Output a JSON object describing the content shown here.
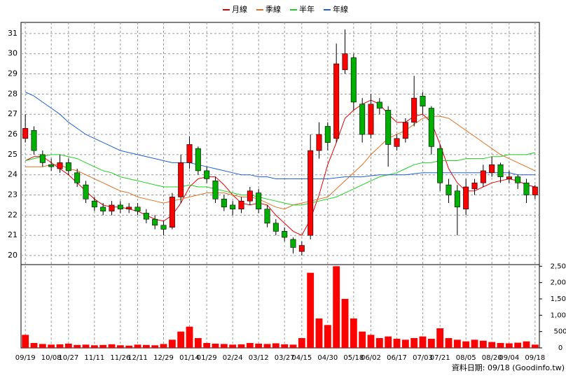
{
  "chart_data": {
    "type": "candlestick",
    "categories": [
      "09/19",
      null,
      null,
      "10/08",
      null,
      "10/27",
      null,
      null,
      "11/11",
      null,
      null,
      "11/26",
      null,
      "12/11",
      null,
      null,
      "12/29",
      null,
      null,
      "01/14",
      null,
      "01/29",
      null,
      null,
      "02/24",
      null,
      null,
      "03/12",
      null,
      null,
      "03/27",
      null,
      "04/15",
      null,
      null,
      "04/30",
      null,
      null,
      "05/18",
      null,
      "06/02",
      null,
      null,
      "06/17",
      null,
      null,
      "07/03",
      null,
      "07/21",
      null,
      null,
      "08/05",
      null,
      null,
      "08/20",
      null,
      "09/04",
      null,
      null,
      "09/18"
    ],
    "open": [
      25.8,
      26.2,
      25.0,
      24.5,
      24.3,
      24.6,
      24.1,
      23.5,
      22.7,
      22.4,
      22.2,
      22.5,
      22.3,
      22.4,
      22.1,
      21.8,
      21.5,
      21.4,
      22.9,
      24.6,
      25.3,
      24.2,
      23.7,
      22.8,
      22.5,
      22.3,
      22.7,
      23.1,
      22.3,
      21.6,
      21.2,
      20.8,
      20.2,
      21.0,
      25.2,
      26.4,
      25.8,
      29.2,
      29.8,
      27.5,
      26.0,
      27.6,
      27.2,
      25.4,
      25.8,
      26.6,
      27.9,
      27.3,
      25.3,
      23.5,
      23.2,
      22.3,
      23.3,
      23.6,
      24.1,
      24.5,
      23.8,
      23.9,
      23.6,
      23.0
    ],
    "high": [
      27.0,
      26.4,
      25.2,
      24.8,
      25.0,
      24.8,
      24.3,
      23.7,
      22.9,
      22.6,
      22.7,
      22.7,
      22.6,
      22.6,
      22.3,
      22.0,
      21.7,
      23.1,
      25.0,
      25.9,
      25.4,
      24.4,
      23.9,
      23.0,
      22.7,
      22.9,
      23.4,
      23.3,
      22.5,
      21.8,
      21.4,
      20.9,
      20.7,
      26.0,
      26.6,
      26.6,
      30.5,
      31.2,
      30.0,
      27.8,
      28.0,
      27.8,
      27.4,
      26.0,
      26.8,
      28.9,
      28.1,
      27.4,
      25.5,
      23.8,
      23.5,
      23.8,
      23.8,
      24.5,
      24.9,
      24.6,
      24.2,
      24.0,
      23.8,
      23.5
    ],
    "low": [
      25.6,
      25.0,
      24.4,
      24.2,
      24.1,
      24.0,
      23.4,
      22.6,
      22.2,
      22.0,
      22.0,
      22.1,
      22.1,
      22.0,
      21.6,
      21.3,
      21.0,
      21.3,
      22.6,
      24.3,
      24.0,
      23.6,
      22.6,
      22.2,
      22.0,
      22.1,
      22.5,
      22.1,
      21.4,
      21.0,
      20.7,
      20.1,
      20.0,
      20.8,
      24.8,
      25.2,
      25.6,
      29.0,
      27.2,
      25.6,
      25.8,
      27.0,
      24.4,
      25.2,
      25.6,
      26.4,
      27.0,
      25.0,
      23.2,
      22.6,
      21.0,
      22.0,
      23.0,
      23.4,
      23.9,
      23.6,
      23.6,
      23.3,
      22.6,
      22.8
    ],
    "close": [
      26.3,
      25.2,
      24.6,
      24.4,
      24.6,
      24.2,
      23.6,
      22.8,
      22.4,
      22.2,
      22.5,
      22.3,
      22.4,
      22.2,
      21.8,
      21.5,
      21.3,
      22.9,
      24.6,
      25.5,
      24.2,
      23.8,
      22.8,
      22.4,
      22.3,
      22.7,
      23.2,
      22.3,
      21.6,
      21.2,
      20.9,
      20.4,
      20.5,
      25.2,
      26.0,
      25.6,
      29.5,
      30.0,
      27.6,
      26.0,
      27.5,
      27.3,
      25.5,
      25.8,
      26.6,
      27.8,
      27.4,
      25.4,
      23.6,
      23.0,
      22.4,
      23.4,
      23.6,
      24.2,
      24.5,
      23.9,
      23.9,
      23.6,
      23.0,
      23.4
    ],
    "up_color": "#ff0000",
    "down_color": "#00b000",
    "series": [
      {
        "name": "月線",
        "color": "#e00000",
        "values": [
          24.7,
          24.9,
          24.9,
          24.6,
          24.3,
          24.0,
          23.6,
          23.2,
          22.8,
          22.5,
          22.4,
          22.4,
          22.3,
          22.2,
          22.0,
          21.8,
          21.7,
          22.0,
          22.6,
          23.4,
          23.8,
          23.9,
          23.9,
          23.5,
          23.0,
          22.6,
          22.5,
          22.6,
          22.5,
          22.0,
          21.6,
          21.2,
          21.0,
          21.8,
          23.0,
          24.5,
          25.6,
          26.8,
          27.2,
          27.5,
          27.7,
          27.5,
          27.0,
          26.6,
          26.6,
          26.9,
          27.0,
          26.6,
          25.5,
          24.3,
          23.6,
          23.2,
          23.2,
          23.4,
          23.6,
          23.7,
          23.8,
          23.7,
          23.5,
          23.4
        ]
      },
      {
        "name": "季線",
        "color": "#e07020",
        "values": [
          24.4,
          24.4,
          24.4,
          24.5,
          24.5,
          24.3,
          24.2,
          24.0,
          23.8,
          23.6,
          23.4,
          23.2,
          23.1,
          22.9,
          22.8,
          22.7,
          22.6,
          22.7,
          22.8,
          22.9,
          23.0,
          23.1,
          23.1,
          23.1,
          23.0,
          22.9,
          22.9,
          22.8,
          22.6,
          22.4,
          22.3,
          22.5,
          22.6,
          22.7,
          22.8,
          22.9,
          23.3,
          23.7,
          24.1,
          24.5,
          25.0,
          25.4,
          25.8,
          26.0,
          26.2,
          26.5,
          26.8,
          26.9,
          26.9,
          26.8,
          26.5,
          26.2,
          25.9,
          25.6,
          25.3,
          25.0,
          24.8,
          24.6,
          24.4,
          24.2
        ]
      },
      {
        "name": "半年",
        "color": "#20d020",
        "values": [
          24.7,
          24.8,
          24.9,
          25.0,
          25.0,
          24.9,
          24.8,
          24.6,
          24.4,
          24.2,
          24.1,
          23.9,
          23.8,
          23.7,
          23.6,
          23.5,
          23.4,
          23.4,
          23.4,
          23.5,
          23.4,
          23.4,
          23.3,
          23.2,
          23.1,
          23.0,
          23.0,
          22.9,
          22.8,
          22.7,
          22.6,
          22.5,
          22.5,
          22.6,
          22.7,
          22.8,
          22.9,
          23.1,
          23.3,
          23.5,
          23.7,
          23.9,
          24.0,
          24.1,
          24.3,
          24.5,
          24.6,
          24.6,
          24.7,
          24.7,
          24.7,
          24.8,
          24.8,
          24.8,
          24.9,
          24.9,
          25.0,
          25.0,
          25.0,
          25.1
        ]
      },
      {
        "name": "年線",
        "color": "#2060d0",
        "values": [
          28.1,
          27.9,
          27.6,
          27.3,
          27.0,
          26.6,
          26.3,
          26.0,
          25.8,
          25.6,
          25.4,
          25.2,
          25.1,
          25.0,
          24.9,
          24.8,
          24.7,
          24.6,
          24.6,
          24.6,
          24.5,
          24.4,
          24.3,
          24.2,
          24.1,
          24.0,
          24.0,
          23.9,
          23.9,
          23.8,
          23.8,
          23.8,
          23.8,
          23.8,
          23.8,
          23.8,
          23.85,
          23.9,
          23.9,
          23.9,
          23.95,
          24.0,
          24.0,
          24.0,
          24.0,
          24.05,
          24.1,
          24.1,
          24.1,
          24.1,
          24.1,
          24.1,
          24.1,
          24.1,
          24.1,
          24.1,
          24.1,
          24.0,
          24.0,
          24.0
        ]
      }
    ],
    "ylim": [
      19.55,
      31.55
    ],
    "yticks": [
      20,
      21,
      22,
      23,
      24,
      25,
      26,
      27,
      28,
      29,
      30,
      31
    ],
    "grid": true,
    "volume": {
      "color": "#ff0000",
      "ylim": [
        0,
        2550
      ],
      "yticks": [
        0,
        500,
        {
          "value": 1000,
          "label": "1,000"
        },
        {
          "value": 1500,
          "label": "1,500"
        },
        {
          "value": 2000,
          "label": "2,000"
        },
        {
          "value": 2500,
          "label": "2,500"
        }
      ],
      "values": [
        400,
        150,
        120,
        100,
        110,
        130,
        90,
        100,
        80,
        90,
        110,
        80,
        70,
        100,
        90,
        80,
        120,
        250,
        500,
        650,
        300,
        150,
        130,
        120,
        100,
        110,
        150,
        130,
        120,
        140,
        110,
        100,
        300,
        2300,
        900,
        700,
        2500,
        1500,
        900,
        500,
        400,
        300,
        350,
        280,
        250,
        300,
        350,
        280,
        600,
        300,
        250,
        200,
        250,
        220,
        180,
        150,
        140,
        160,
        200,
        100
      ]
    },
    "footer": "資料日期: 09/18 (Goodinfo.tw)"
  }
}
